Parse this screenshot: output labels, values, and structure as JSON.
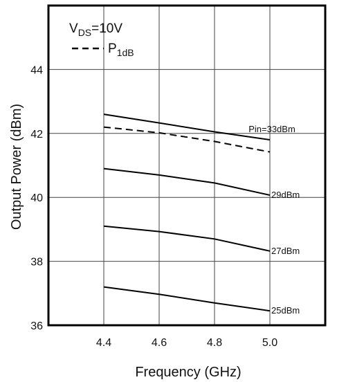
{
  "chart_data": {
    "type": "line",
    "title": "",
    "xlabel": "Frequency (GHz)",
    "ylabel": "Output Power (dBm)",
    "xlim": [
      4.2,
      5.2
    ],
    "ylim": [
      36,
      46
    ],
    "xticks": [
      "4.4",
      "4.6",
      "4.8",
      "5.0"
    ],
    "yticks": [
      "36",
      "38",
      "40",
      "42",
      "44"
    ],
    "grid": true,
    "legend": {
      "placement": "top-left",
      "condition_main": "V",
      "condition_sub": "DS",
      "condition_value": "=10V",
      "dashed_main": "P",
      "dashed_sub": "1dB"
    },
    "series": [
      {
        "label": "Pin=33dBm",
        "style": "solid",
        "x": [
          4.4,
          4.6,
          4.8,
          5.0
        ],
        "y": [
          42.6,
          42.33,
          42.05,
          41.8
        ]
      },
      {
        "label": "",
        "style": "dashed",
        "x": [
          4.4,
          4.6,
          4.8,
          5.0
        ],
        "y": [
          42.2,
          42.02,
          41.75,
          41.42
        ]
      },
      {
        "label": "29dBm",
        "style": "solid",
        "x": [
          4.4,
          4.6,
          4.8,
          5.0
        ],
        "y": [
          40.9,
          40.7,
          40.45,
          40.07
        ]
      },
      {
        "label": "27dBm",
        "style": "solid",
        "x": [
          4.4,
          4.6,
          4.8,
          5.0
        ],
        "y": [
          39.1,
          38.93,
          38.7,
          38.32
        ]
      },
      {
        "label": "25dBm",
        "style": "solid",
        "x": [
          4.4,
          4.6,
          4.8,
          5.0
        ],
        "y": [
          37.2,
          36.97,
          36.7,
          36.45
        ]
      }
    ]
  }
}
